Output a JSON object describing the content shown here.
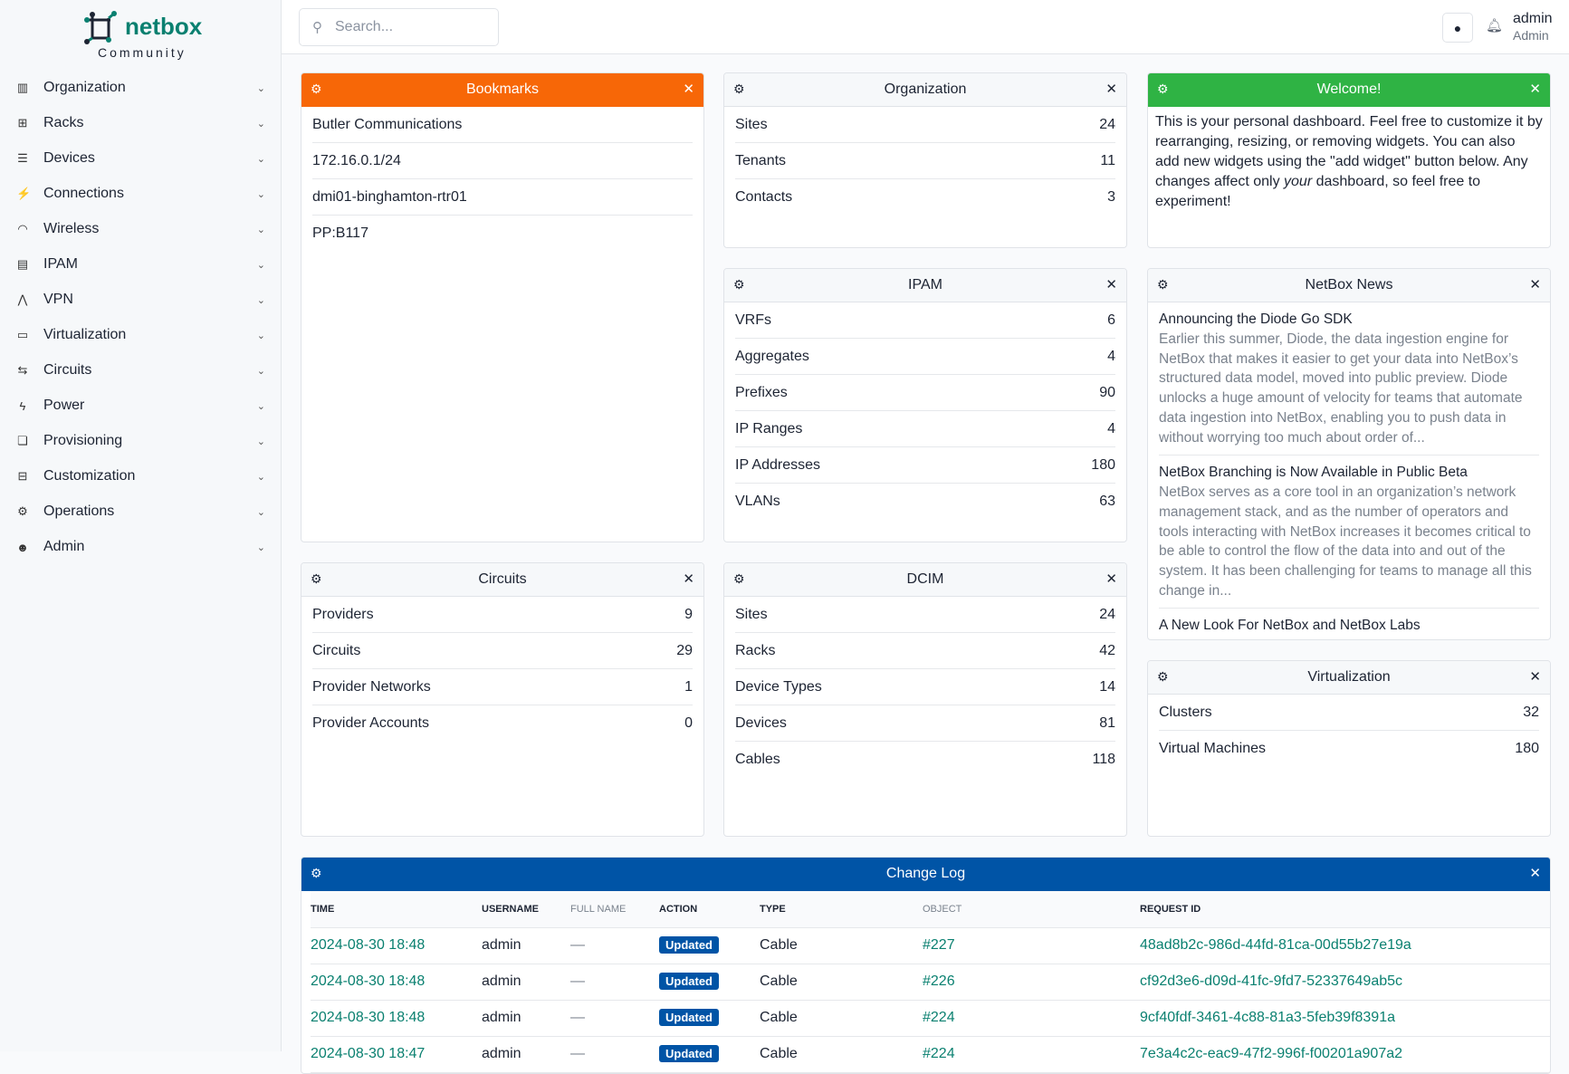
{
  "brand": {
    "name": "netbox",
    "edition": "Community",
    "color": "#0a8070"
  },
  "sidebar": {
    "items": [
      {
        "label": "Organization",
        "icon": "building-icon"
      },
      {
        "label": "Racks",
        "icon": "rack-icon"
      },
      {
        "label": "Devices",
        "icon": "server-icon"
      },
      {
        "label": "Connections",
        "icon": "plug-icon"
      },
      {
        "label": "Wireless",
        "icon": "wifi-icon"
      },
      {
        "label": "IPAM",
        "icon": "counter-icon"
      },
      {
        "label": "VPN",
        "icon": "tunnel-icon"
      },
      {
        "label": "Virtualization",
        "icon": "monitor-icon"
      },
      {
        "label": "Circuits",
        "icon": "transit-icon"
      },
      {
        "label": "Power",
        "icon": "flash-icon"
      },
      {
        "label": "Provisioning",
        "icon": "file-icon"
      },
      {
        "label": "Customization",
        "icon": "toolbox-icon"
      },
      {
        "label": "Operations",
        "icon": "cogs-icon"
      },
      {
        "label": "Admin",
        "icon": "users-icon"
      }
    ]
  },
  "header": {
    "search_placeholder": "Search...",
    "user": "admin",
    "role": "Admin"
  },
  "widgets": {
    "bookmarks": {
      "title": "Bookmarks",
      "color": "#f76707",
      "items": [
        "Butler Communications",
        "172.16.0.1/24",
        "dmi01-binghamton-rtr01",
        "PP:B117"
      ]
    },
    "organization": {
      "title": "Organization",
      "rows": [
        {
          "label": "Sites",
          "value": "24"
        },
        {
          "label": "Tenants",
          "value": "11"
        },
        {
          "label": "Contacts",
          "value": "3"
        }
      ]
    },
    "welcome": {
      "title": "Welcome!",
      "color": "#2fb344",
      "text_before": "This is your personal dashboard. Feel free to customize it by rearranging, resizing, or removing widgets. You can also add new widgets using the \"add widget\" button below. Any changes affect only ",
      "text_em": "your",
      "text_after": " dashboard, so feel free to experiment!"
    },
    "ipam": {
      "title": "IPAM",
      "rows": [
        {
          "label": "VRFs",
          "value": "6"
        },
        {
          "label": "Aggregates",
          "value": "4"
        },
        {
          "label": "Prefixes",
          "value": "90"
        },
        {
          "label": "IP Ranges",
          "value": "4"
        },
        {
          "label": "IP Addresses",
          "value": "180"
        },
        {
          "label": "VLANs",
          "value": "63"
        }
      ]
    },
    "news": {
      "title": "NetBox News",
      "items": [
        {
          "title": "Announcing the Diode Go SDK",
          "desc": "Earlier this summer, Diode, the data ingestion engine for NetBox that makes it easier to get your data into NetBox’s structured data model, moved into public preview. Diode unlocks a huge amount of velocity for teams that automate data ingestion into NetBox, enabling you to push data in without worrying too much about order of..."
        },
        {
          "title": "NetBox Branching is Now Available in Public Beta",
          "desc": "NetBox serves as a core tool in an organization’s network management stack, and as the number of operators and tools interacting with NetBox increases it becomes critical to be able to control the flow of the data into and out of the system. It has been challenging for teams to manage all this change in..."
        },
        {
          "title": "A New Look For NetBox and NetBox Labs",
          "desc": ""
        }
      ]
    },
    "circuits": {
      "title": "Circuits",
      "rows": [
        {
          "label": "Providers",
          "value": "9"
        },
        {
          "label": "Circuits",
          "value": "29"
        },
        {
          "label": "Provider Networks",
          "value": "1"
        },
        {
          "label": "Provider Accounts",
          "value": "0"
        }
      ]
    },
    "dcim": {
      "title": "DCIM",
      "rows": [
        {
          "label": "Sites",
          "value": "24"
        },
        {
          "label": "Racks",
          "value": "42"
        },
        {
          "label": "Device Types",
          "value": "14"
        },
        {
          "label": "Devices",
          "value": "81"
        },
        {
          "label": "Cables",
          "value": "118"
        }
      ]
    },
    "virtualization": {
      "title": "Virtualization",
      "rows": [
        {
          "label": "Clusters",
          "value": "32"
        },
        {
          "label": "Virtual Machines",
          "value": "180"
        }
      ]
    },
    "changelog": {
      "title": "Change Log",
      "color": "#0054a6",
      "columns": [
        "TIME",
        "USERNAME",
        "FULL NAME",
        "ACTION",
        "TYPE",
        "OBJECT",
        "REQUEST ID"
      ],
      "rows": [
        {
          "time": "2024-08-30 18:48",
          "username": "admin",
          "full_name": "—",
          "action": "Updated",
          "type": "Cable",
          "object": "#227",
          "request_id": "48ad8b2c-986d-44fd-81ca-00d55b27e19a"
        },
        {
          "time": "2024-08-30 18:48",
          "username": "admin",
          "full_name": "—",
          "action": "Updated",
          "type": "Cable",
          "object": "#226",
          "request_id": "cf92d3e6-d09d-41fc-9fd7-52337649ab5c"
        },
        {
          "time": "2024-08-30 18:48",
          "username": "admin",
          "full_name": "—",
          "action": "Updated",
          "type": "Cable",
          "object": "#224",
          "request_id": "9cf40fdf-3461-4c88-81a3-5feb39f8391a"
        },
        {
          "time": "2024-08-30 18:47",
          "username": "admin",
          "full_name": "—",
          "action": "Updated",
          "type": "Cable",
          "object": "#224",
          "request_id": "7e3a4c2c-eac9-47f2-996f-f00201a907a2"
        }
      ]
    }
  }
}
